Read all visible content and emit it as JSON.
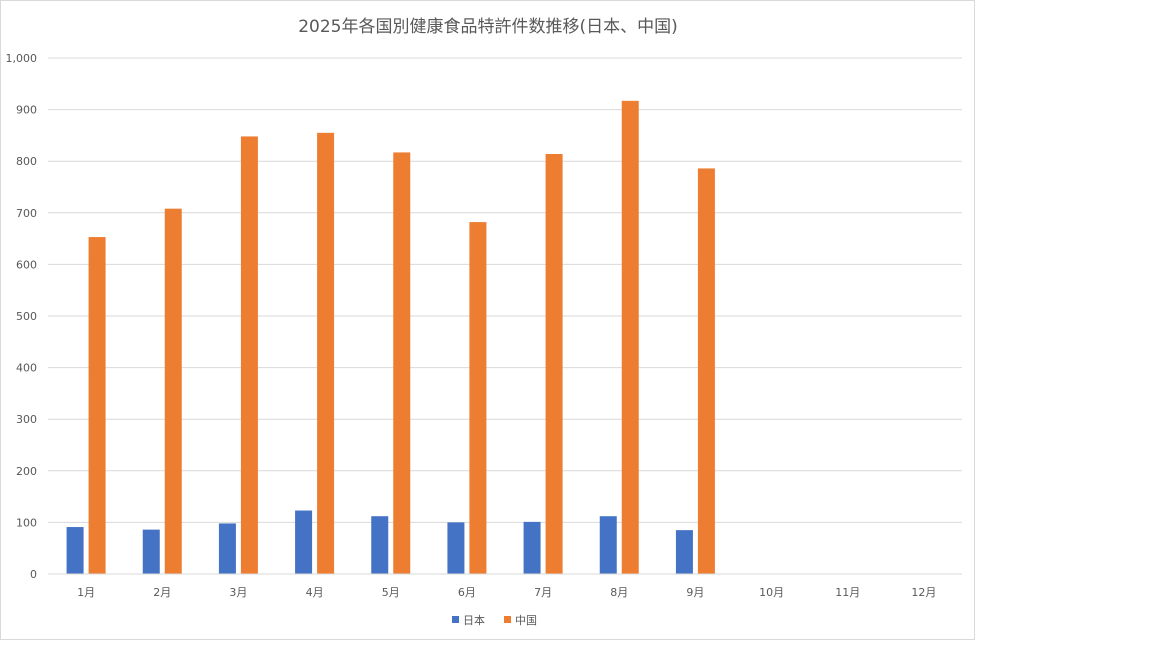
{
  "chart_data": {
    "type": "bar",
    "title": "2025年各国別健康食品特許件数推移(日本、中国)",
    "xlabel": "",
    "ylabel": "",
    "categories": [
      "1月",
      "2月",
      "3月",
      "4月",
      "5月",
      "6月",
      "7月",
      "8月",
      "9月",
      "10月",
      "11月",
      "12月"
    ],
    "series": [
      {
        "name": "日本",
        "color": "#4472c4",
        "values": [
          91,
          86,
          98,
          123,
          112,
          100,
          101,
          112,
          85,
          null,
          null,
          null
        ]
      },
      {
        "name": "中国",
        "color": "#ed7d31",
        "values": [
          653,
          708,
          848,
          855,
          817,
          682,
          814,
          917,
          786,
          null,
          null,
          null
        ]
      }
    ],
    "ylim": [
      0,
      1000
    ],
    "yticks": [
      0,
      100,
      200,
      300,
      400,
      500,
      600,
      700,
      800,
      900,
      1000
    ],
    "ytick_labels": [
      "0",
      "100",
      "200",
      "300",
      "400",
      "500",
      "600",
      "700",
      "800",
      "900",
      "1,000"
    ],
    "grid": true,
    "legend_position": "bottom"
  },
  "colors": {
    "gridline": "#d9d9d9",
    "axis": "#d9d9d9",
    "text": "#595959"
  }
}
